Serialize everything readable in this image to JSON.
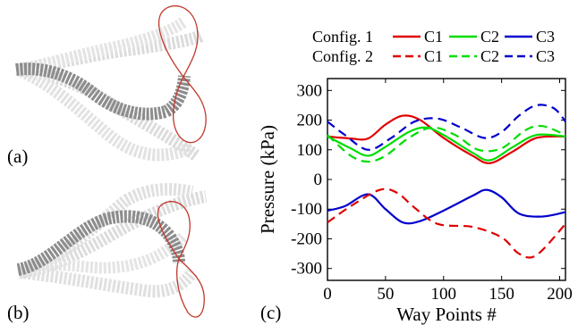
{
  "panels": {
    "a": "(a)",
    "b": "(b)",
    "c": "(c)"
  },
  "colors": {
    "C1": "#e00000",
    "C2": "#00dd00",
    "C3": "#0000cc",
    "robot_dark": "#8c8c8c",
    "robot_ghost": "#dadada",
    "trajectory": "#c0392b"
  },
  "legend": {
    "rows": [
      {
        "label": "Config. 1",
        "dash": "solid",
        "entries": [
          "C1",
          "C2",
          "C3"
        ]
      },
      {
        "label": "Config. 2",
        "dash": "dashed",
        "entries": [
          "C1",
          "C2",
          "C3"
        ]
      }
    ]
  },
  "chart_data": {
    "type": "line",
    "xlabel": "Way Points #",
    "ylabel": "Pressure (kPa)",
    "xlim": [
      0,
      205
    ],
    "ylim": [
      -340,
      340
    ],
    "xticks": [
      0,
      50,
      100,
      150,
      200
    ],
    "yticks": [
      300,
      200,
      100,
      0,
      -100,
      -200,
      -300
    ],
    "grid": false,
    "legend_position": "top",
    "series": [
      {
        "name": "C1",
        "config": "Config. 1",
        "color": "#e00000",
        "dash": "solid",
        "x": [
          0,
          20,
          35,
          50,
          65,
          80,
          100,
          125,
          140,
          160,
          180,
          205
        ],
        "y": [
          145,
          138,
          138,
          185,
          215,
          200,
          140,
          80,
          55,
          95,
          140,
          145
        ]
      },
      {
        "name": "C2",
        "config": "Config. 1",
        "color": "#00dd00",
        "dash": "solid",
        "x": [
          0,
          20,
          35,
          50,
          70,
          85,
          100,
          125,
          140,
          160,
          180,
          205
        ],
        "y": [
          145,
          105,
          80,
          110,
          160,
          175,
          150,
          90,
          65,
          110,
          150,
          145
        ]
      },
      {
        "name": "C3",
        "config": "Config. 1",
        "color": "#0000cc",
        "dash": "solid",
        "x": [
          0,
          15,
          35,
          50,
          65,
          80,
          100,
          125,
          137,
          150,
          165,
          185,
          205
        ],
        "y": [
          -105,
          -90,
          -50,
          -100,
          -145,
          -140,
          -105,
          -55,
          -35,
          -60,
          -115,
          -125,
          -110
        ]
      },
      {
        "name": "C1",
        "config": "Config. 2",
        "color": "#e00000",
        "dash": "dashed",
        "x": [
          0,
          20,
          45,
          60,
          75,
          95,
          125,
          150,
          165,
          180,
          205
        ],
        "y": [
          -145,
          -90,
          -35,
          -45,
          -95,
          -150,
          -160,
          -195,
          -250,
          -255,
          -150
        ]
      },
      {
        "name": "C2",
        "config": "Config. 2",
        "color": "#00dd00",
        "dash": "dashed",
        "x": [
          0,
          20,
          35,
          50,
          70,
          90,
          110,
          130,
          150,
          170,
          185,
          205
        ],
        "y": [
          150,
          80,
          60,
          80,
          140,
          175,
          150,
          100,
          105,
          165,
          180,
          150
        ]
      },
      {
        "name": "C3",
        "config": "Config. 2",
        "color": "#0000cc",
        "dash": "dashed",
        "x": [
          0,
          15,
          35,
          55,
          75,
          95,
          115,
          135,
          150,
          165,
          180,
          195,
          205
        ],
        "y": [
          195,
          150,
          100,
          140,
          195,
          205,
          175,
          140,
          160,
          215,
          250,
          240,
          195
        ]
      }
    ]
  }
}
